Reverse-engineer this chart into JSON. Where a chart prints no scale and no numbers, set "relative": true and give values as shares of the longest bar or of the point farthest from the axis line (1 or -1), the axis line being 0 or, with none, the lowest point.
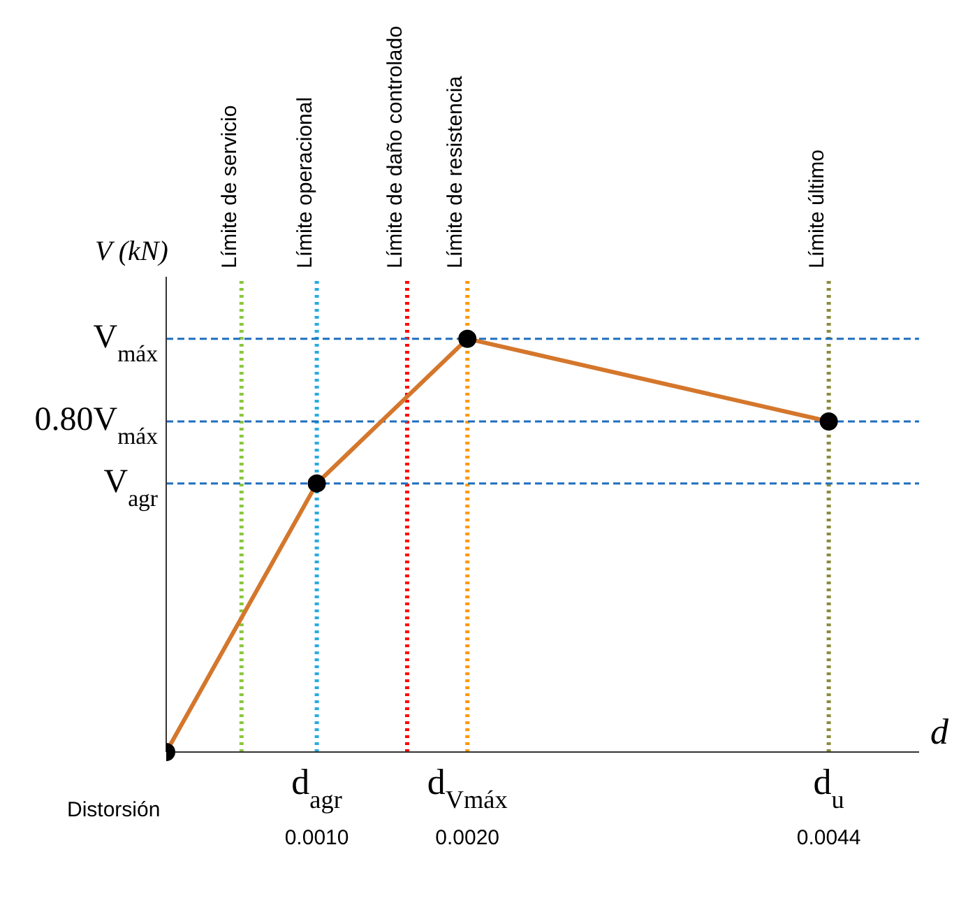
{
  "chart_data": {
    "type": "line",
    "relative": true,
    "xlabel": "d",
    "ylabel": "V (kN)",
    "marker": "circle",
    "x": [
      0,
      0.001,
      0.002,
      0.0044
    ],
    "series": [
      {
        "color": "#d4772c",
        "values": [
          0,
          0.65,
          1,
          0.8
        ]
      }
    ],
    "xlim": [
      0,
      0.005
    ],
    "xticks": [
      {
        "value": 0.001,
        "label": "0.0010"
      },
      {
        "value": 0.002,
        "label": "0.0020"
      },
      {
        "value": 0.0044,
        "label": "0.0044"
      }
    ],
    "ref_lines": [
      {
        "axis": "x",
        "value": 0.0005,
        "label": "Límite de servicio",
        "color": "#8dc63f",
        "line_style": "dotted"
      },
      {
        "axis": "x",
        "value": 0.001,
        "label": "Límite operacional",
        "color": "#29abe2",
        "line_style": "dotted"
      },
      {
        "axis": "x",
        "value": 0.0016,
        "label": "Límite de daño controlado",
        "color": "#ff0000",
        "line_style": "dotted"
      },
      {
        "axis": "x",
        "value": 0.002,
        "label": "Límite de resistencia",
        "color": "#ff9900",
        "line_style": "dotted"
      },
      {
        "axis": "x",
        "value": 0.0044,
        "label": "Límite último",
        "color": "#8c8c3c",
        "line_style": "dotted"
      },
      {
        "axis": "y",
        "value": 1,
        "label": "V$_{máx}$",
        "color": "#1f6fbf",
        "line_style": "dashed"
      },
      {
        "axis": "y",
        "value": 0.8,
        "label": "0.80V$_{máx}$",
        "color": "#1f6fbf",
        "line_style": "dashed"
      },
      {
        "axis": "y",
        "value": 0.65,
        "label": "V$_{agr}$",
        "color": "#1f6fbf",
        "line_style": "dashed"
      }
    ],
    "annotations": [
      "Distorsión",
      "d$_{agr}$",
      "d$_{Vmáx}$",
      "d$_{u}$"
    ]
  }
}
